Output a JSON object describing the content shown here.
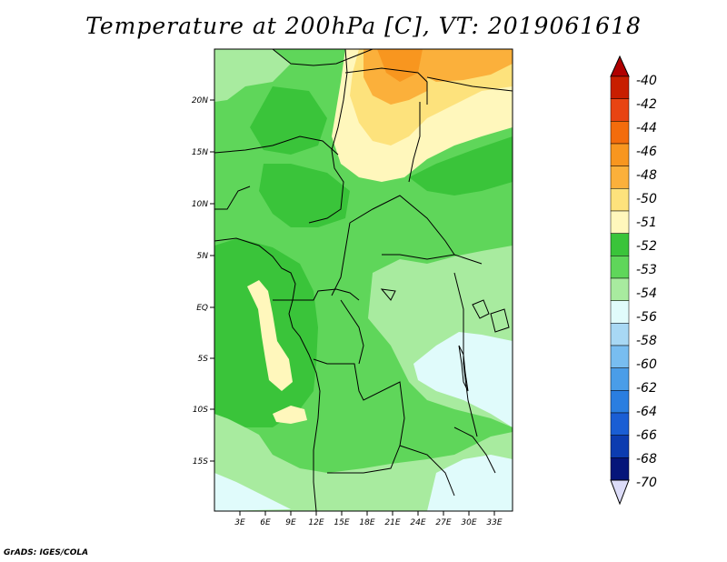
{
  "title": "Temperature at 200hPa [C], VT: 2019061618",
  "credit": "GrADS: IGES/COLA",
  "map": {
    "lat_labels": [
      "20N",
      "15N",
      "10N",
      "5N",
      "EQ",
      "5S",
      "10S",
      "15S"
    ],
    "lon_labels": [
      "3E",
      "6E",
      "9E",
      "12E",
      "15E",
      "18E",
      "21E",
      "24E",
      "27E",
      "30E",
      "33E"
    ]
  },
  "colorbar": {
    "levels": [
      {
        "label": "-40",
        "color": "#c81e00"
      },
      {
        "label": "-42",
        "color": "#e84412"
      },
      {
        "label": "-44",
        "color": "#f36c0c"
      },
      {
        "label": "-46",
        "color": "#f8961f"
      },
      {
        "label": "-48",
        "color": "#fbb03b"
      },
      {
        "label": "-50",
        "color": "#fde27c"
      },
      {
        "label": "-51",
        "color": "#fff7bc"
      },
      {
        "label": "-52",
        "color": "#3ac43a"
      },
      {
        "label": "-53",
        "color": "#5fd65a"
      },
      {
        "label": "-54",
        "color": "#a8eb9f"
      },
      {
        "label": "-56",
        "color": "#e0fbfb"
      },
      {
        "label": "-58",
        "color": "#a8d8f4"
      },
      {
        "label": "-60",
        "color": "#78bdf0"
      },
      {
        "label": "-62",
        "color": "#4a9de8"
      },
      {
        "label": "-64",
        "color": "#2a7ee0"
      },
      {
        "label": "-66",
        "color": "#1a5ed4"
      },
      {
        "label": "-68",
        "color": "#0c3cb0"
      },
      {
        "label": "-70",
        "color": "#05157a"
      }
    ],
    "over_color": "#b00000",
    "under_color": "#dcdcf8"
  }
}
